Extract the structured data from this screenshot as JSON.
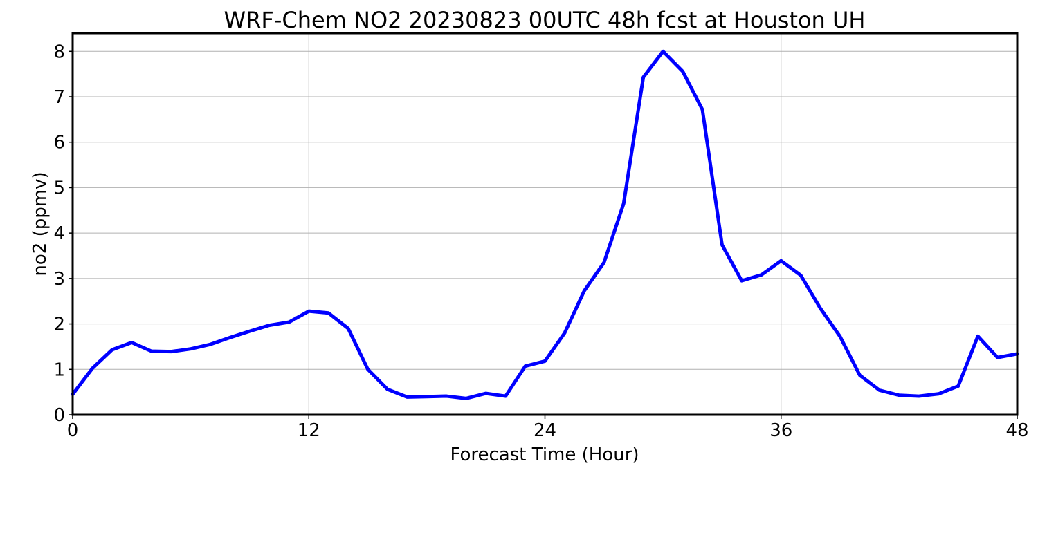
{
  "chart_data": {
    "type": "line",
    "title": "WRF-Chem NO2  20230823 00UTC 48h fcst at Houston UH",
    "xlabel": "Forecast Time (Hour)",
    "ylabel": "no2  (ppmv)",
    "xlim": [
      0,
      48
    ],
    "ylim": [
      0,
      8.4
    ],
    "xticks": [
      0,
      12,
      24,
      36,
      48
    ],
    "yticks": [
      0,
      1,
      2,
      3,
      4,
      5,
      6,
      7,
      8
    ],
    "grid": true,
    "series": [
      {
        "color": "#0000ff",
        "x": [
          0,
          1,
          2,
          3,
          4,
          5,
          6,
          7,
          8,
          9,
          10,
          11,
          12,
          13,
          14,
          15,
          16,
          17,
          18,
          19,
          20,
          21,
          22,
          23,
          24,
          25,
          26,
          27,
          28,
          29,
          30,
          31,
          32,
          33,
          34,
          35,
          36,
          37,
          38,
          39,
          40,
          41,
          42,
          43,
          44,
          45,
          46,
          47,
          48
        ],
        "values": [
          0.45,
          1.02,
          1.43,
          1.59,
          1.4,
          1.39,
          1.45,
          1.55,
          1.7,
          1.84,
          1.97,
          2.04,
          2.28,
          2.24,
          1.9,
          1.0,
          0.56,
          0.39,
          0.4,
          0.41,
          0.36,
          0.47,
          0.41,
          1.07,
          1.18,
          1.8,
          2.73,
          3.35,
          4.65,
          7.43,
          8.0,
          7.56,
          6.72,
          3.74,
          2.95,
          3.08,
          3.39,
          3.07,
          2.34,
          1.72,
          0.87,
          0.54,
          0.43,
          0.41,
          0.46,
          0.63,
          1.73,
          1.26,
          1.34
        ]
      }
    ]
  }
}
